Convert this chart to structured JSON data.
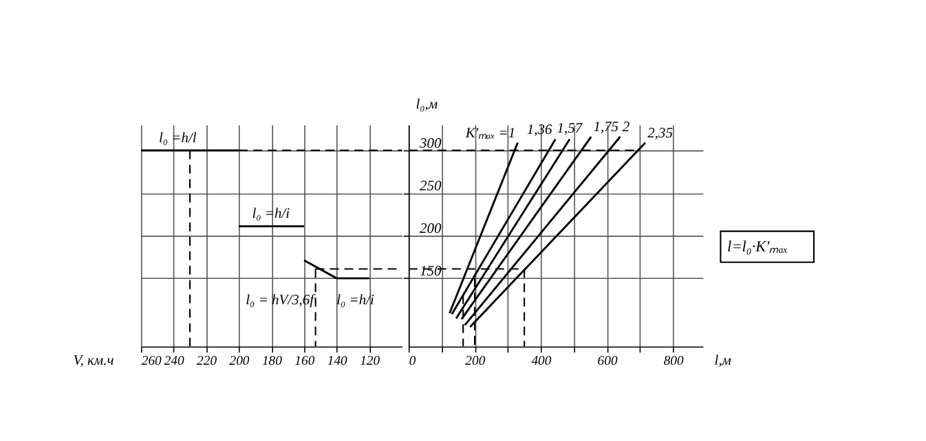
{
  "chart_data": [
    {
      "type": "line",
      "xlabel": "V, км.ч",
      "xlim": [
        260,
        100
      ],
      "xticks": [
        260,
        240,
        220,
        200,
        180,
        160,
        140,
        120
      ],
      "ylim": [
        70,
        330
      ],
      "yticks": [
        150,
        200,
        250,
        300
      ],
      "tick_labels": "x",
      "grid": true,
      "line_style": "solid",
      "annotations": [
        "l₀ =h/l",
        "l₀ =h/i",
        "l₀ = hV/3,6f",
        "l₀ =h/i"
      ],
      "series": [
        {
          "color": "#000000",
          "x": [
            260,
            200
          ],
          "values": [
            300,
            300
          ]
        },
        {
          "color": "#000000",
          "x": [
            200,
            100
          ],
          "values": [
            300,
            300
          ],
          "line_style": "dashed"
        },
        {
          "color": "#000000",
          "x": [
            230,
            230
          ],
          "values": [
            300,
            70
          ],
          "line_style": "dashed"
        },
        {
          "color": "#000000",
          "x": [
            200,
            160
          ],
          "values": [
            211,
            211
          ]
        },
        {
          "color": "#000000",
          "x": [
            160,
            140
          ],
          "values": [
            171,
            150
          ]
        },
        {
          "color": "#000000",
          "x": [
            140,
            120
          ],
          "values": [
            150,
            150
          ]
        },
        {
          "color": "#000000",
          "x": [
            153,
            100
          ],
          "values": [
            161,
            161
          ],
          "line_style": "dashed"
        },
        {
          "color": "#000000",
          "x": [
            153,
            153
          ],
          "values": [
            161,
            70
          ],
          "line_style": "dashed"
        }
      ]
    },
    {
      "type": "line",
      "xlabel": "l,м",
      "ylabel": "l₀,м",
      "xlim": [
        0,
        890
      ],
      "xticks": [
        0,
        {
          "value": 100,
          "label": null
        },
        200,
        {
          "value": 300,
          "label": null
        },
        400,
        {
          "value": 500,
          "label": null
        },
        600,
        {
          "value": 700,
          "label": null
        },
        800
      ],
      "ylim": [
        70,
        330
      ],
      "yticks": [
        150,
        200,
        250,
        300
      ],
      "grid": true,
      "line_style": "solid",
      "annotations": [
        "l=l₀·K'ₘₐₓ"
      ],
      "series": [
        {
          "name": "K'ₘₐₓ =1",
          "color": "#000000",
          "x": [
            124,
            330
          ],
          "values": [
            109,
            309
          ]
        },
        {
          "name": "1,36",
          "color": "#000000",
          "x": [
            131,
            444
          ],
          "values": [
            108,
            313
          ]
        },
        {
          "name": "1,57",
          "color": "#000000",
          "x": [
            144,
            487
          ],
          "values": [
            103,
            313
          ]
        },
        {
          "name": "1,75",
          "color": "#000000",
          "x": [
            160,
            552
          ],
          "values": [
            102,
            316
          ]
        },
        {
          "name": "2",
          "color": "#000000",
          "x": [
            170,
            640
          ],
          "values": [
            95,
            316
          ]
        },
        {
          "name": "2,35",
          "color": "#000000",
          "x": [
            186,
            716
          ],
          "values": [
            93,
            309
          ]
        },
        {
          "color": "#000000",
          "x": [
            0,
            700
          ],
          "values": [
            300,
            300
          ],
          "line_style": "dashed"
        },
        {
          "color": "#000000",
          "x": [
            0,
            350
          ],
          "values": [
            161,
            161
          ],
          "line_style": "dashed"
        },
        {
          "color": "#000000",
          "x": [
            350,
            350
          ],
          "values": [
            161,
            70
          ],
          "line_style": "dashed"
        },
        {
          "color": "#000000",
          "x": [
            200,
            200
          ],
          "values": [
            150,
            70
          ],
          "line_style": "dashed"
        },
        {
          "color": "#000000",
          "x": [
            165,
            165
          ],
          "values": [
            130,
            70
          ],
          "line_style": "dashed"
        }
      ]
    }
  ]
}
